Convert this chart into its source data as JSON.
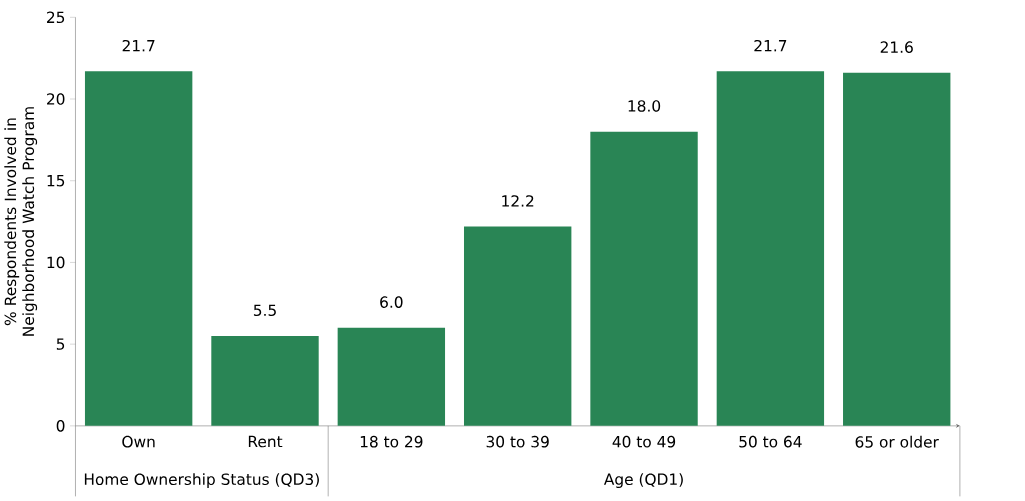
{
  "chart_data": {
    "type": "bar",
    "ylabel": "% Respondents Involved in Neighborhood Watch Program",
    "categories": [
      "Own",
      "Rent",
      "18 to 29",
      "30 to 39",
      "40 to 49",
      "50 to 64",
      "65 or older"
    ],
    "values": [
      21.7,
      5.5,
      6.0,
      12.2,
      18.0,
      21.7,
      21.6
    ],
    "color": "#298555",
    "ylim": [
      0,
      25
    ],
    "yticks": [
      0,
      5,
      10,
      15,
      20,
      25
    ],
    "value_labels": [
      "21.7",
      "5.5",
      "6.0",
      "12.2",
      "18.0",
      "21.7",
      "21.6"
    ],
    "annotations": [
      "Home Ownership Status (QD3)",
      "Age (QD1)"
    ]
  }
}
